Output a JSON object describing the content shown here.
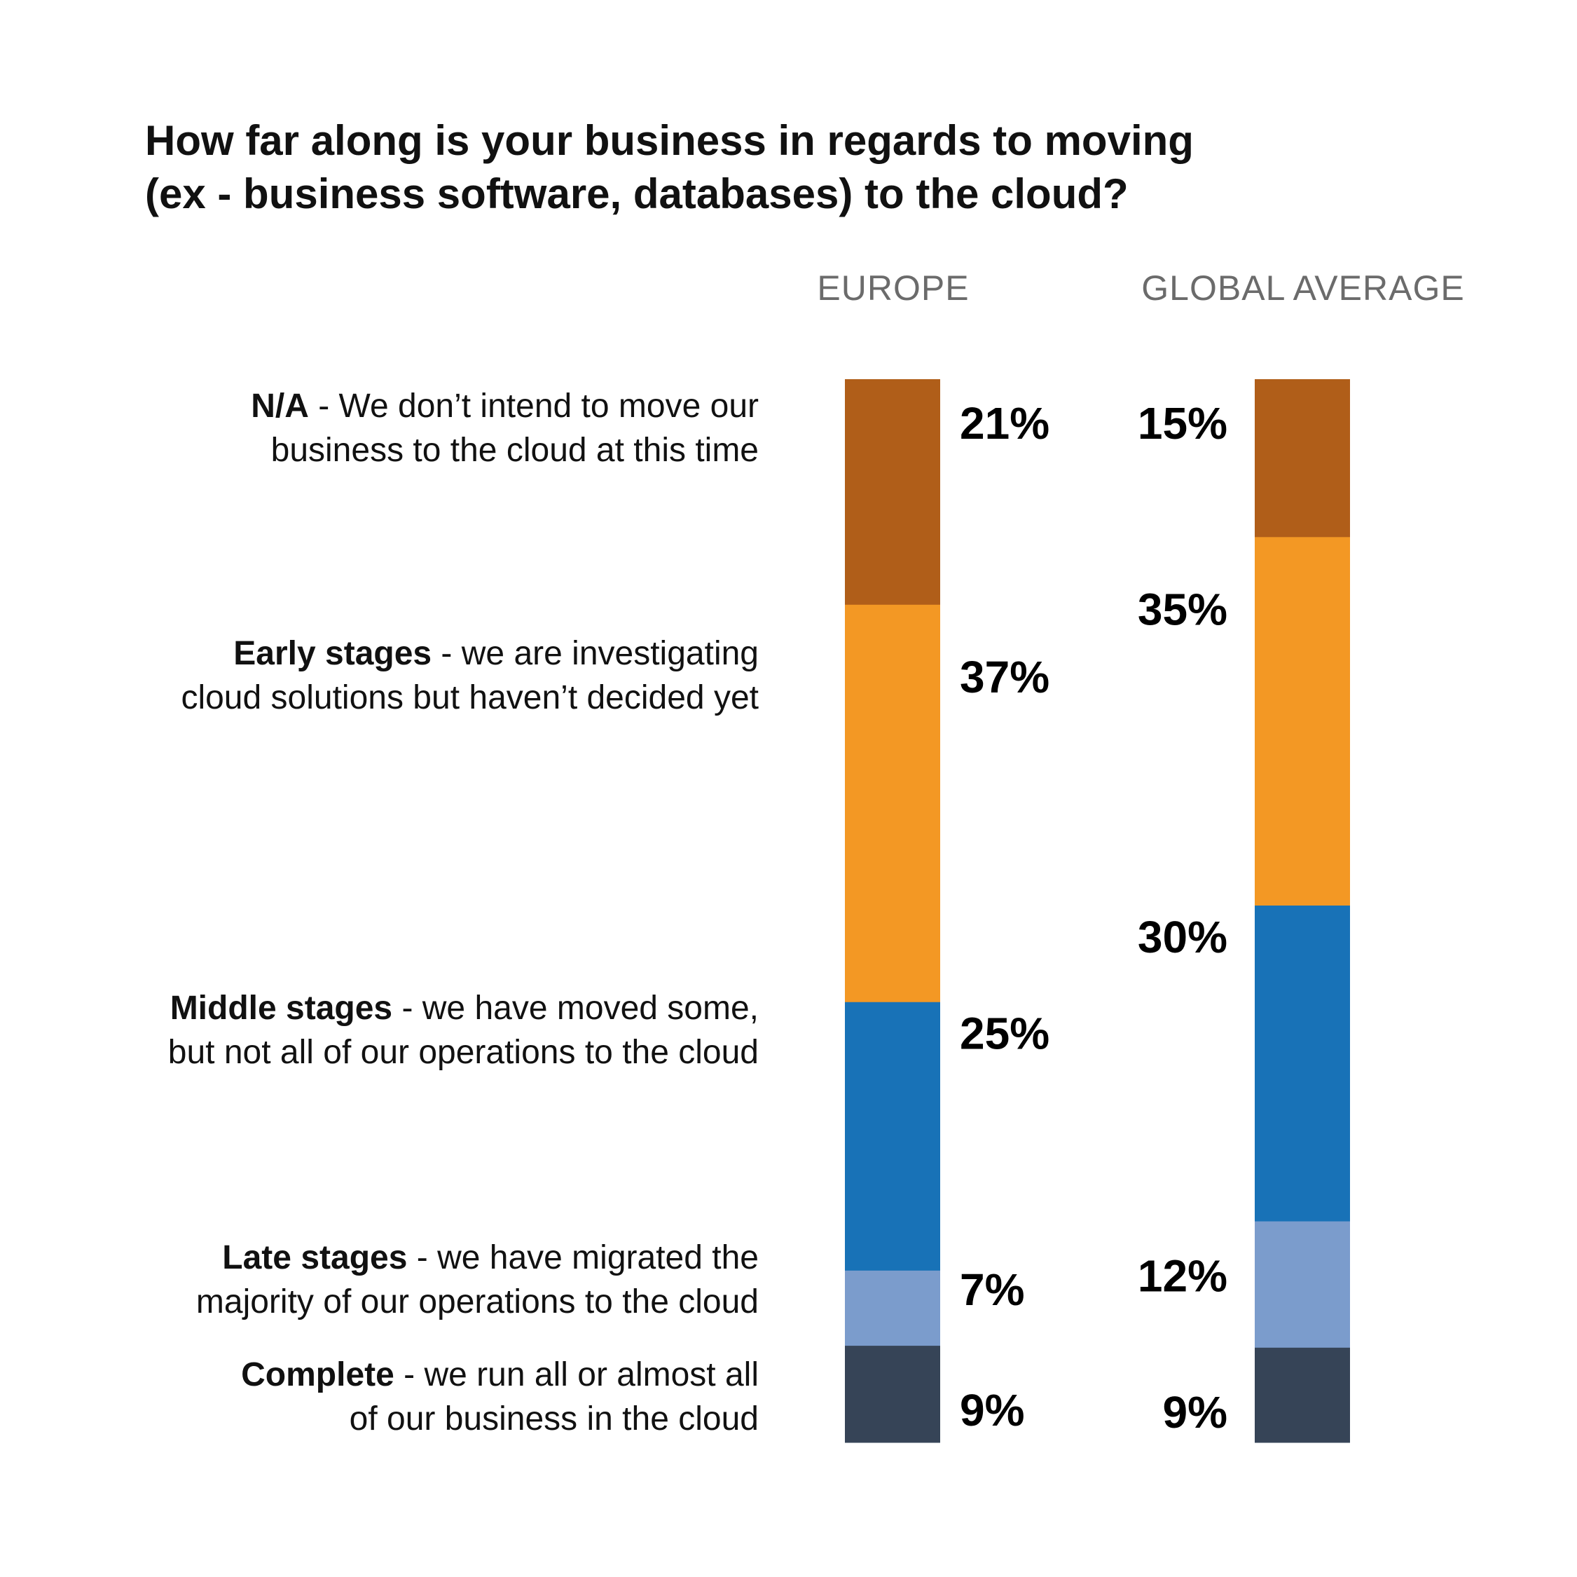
{
  "chart_data": {
    "type": "bar",
    "subtype": "stacked-100",
    "title_lines": [
      "How far along is your business in regards to moving",
      "(ex - business software, databases) to the cloud?"
    ],
    "categories": [
      {
        "bold": "N/A",
        "rest_line1": " - We don’t intend to move our",
        "line2": "business to the cloud at this time"
      },
      {
        "bold": "Early stages",
        "rest_line1": " - we are investigating",
        "line2": "cloud solutions but haven’t decided yet"
      },
      {
        "bold": "Middle stages",
        "rest_line1": " - we have moved some,",
        "line2": "but not all of our operations to the cloud"
      },
      {
        "bold": "Late stages",
        "rest_line1": " - we have migrated the",
        "line2": "majority of our operations to the cloud"
      },
      {
        "bold": "Complete",
        "rest_line1": " - we run all or almost all",
        "line2": "of our business in the cloud"
      }
    ],
    "series": [
      {
        "name": "EUROPE",
        "values": [
          21,
          37,
          25,
          7,
          9
        ],
        "labels": [
          "21%",
          "37%",
          "25%",
          "7%",
          "9%"
        ]
      },
      {
        "name": "GLOBAL AVERAGE",
        "values": [
          15,
          35,
          30,
          12,
          9
        ],
        "labels": [
          "15%",
          "35%",
          "30%",
          "12%",
          "9%"
        ]
      }
    ],
    "colors": [
      "#b05e19",
      "#f39824",
      "#1872b7",
      "#7b9ccc",
      "#364457"
    ],
    "unit": "%"
  }
}
